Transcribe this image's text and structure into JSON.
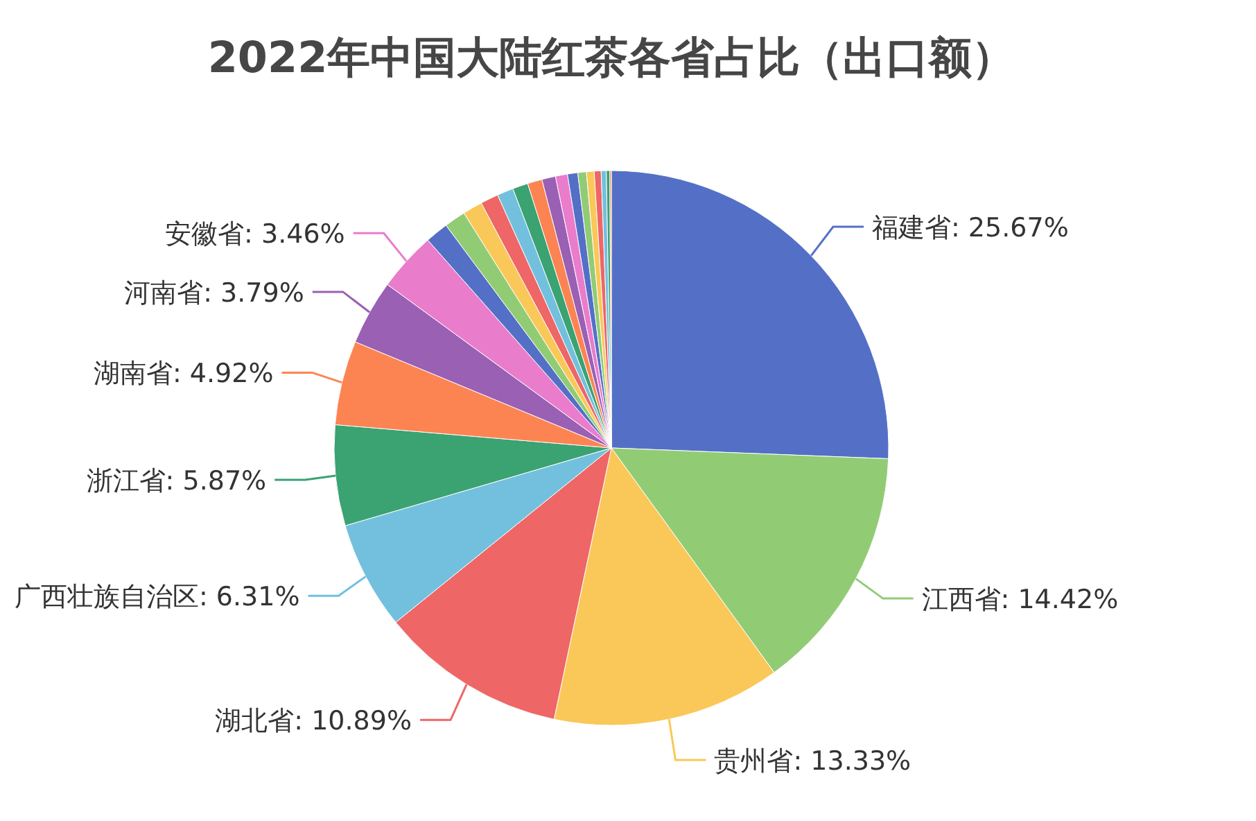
{
  "chart_data": {
    "type": "pie",
    "title": "2022年中国大陆红茶各省占比（出口额）",
    "categories": [
      "福建省",
      "江西省",
      "贵州省",
      "湖北省",
      "广西壮族自治区",
      "浙江省",
      "湖南省",
      "河南省",
      "安徽省",
      null,
      null,
      null,
      null,
      null,
      null,
      null,
      null,
      null,
      null,
      null,
      null,
      null,
      null,
      null,
      null
    ],
    "values": [
      25.67,
      14.42,
      13.33,
      10.89,
      6.31,
      5.87,
      4.92,
      3.79,
      3.46,
      1.35,
      1.25,
      1.15,
      1.05,
      0.95,
      0.9,
      0.85,
      0.8,
      0.7,
      0.6,
      0.5,
      0.45,
      0.4,
      0.3,
      0.2,
      0.09
    ],
    "colors": [
      "#5470c6",
      "#91cc75",
      "#fac858",
      "#ee6666",
      "#73c0de",
      "#3ba272",
      "#fc8452",
      "#9a60b4",
      "#ea7ccc",
      "#5470c6",
      "#91cc75",
      "#fac858",
      "#ee6666",
      "#73c0de",
      "#3ba272",
      "#fc8452",
      "#9a60b4",
      "#ea7ccc",
      "#5470c6",
      "#91cc75",
      "#fac858",
      "#ee6666",
      "#73c0de",
      "#3ba272",
      "#fc8452"
    ],
    "value_labels": [
      "25.67%",
      "14.42%",
      "13.33%",
      "10.89%",
      "6.31%",
      "5.87%",
      "4.92%",
      "3.79%",
      "3.46%",
      null,
      null,
      null,
      null,
      null,
      null,
      null,
      null,
      null,
      null,
      null,
      null,
      null,
      null,
      null,
      null
    ]
  }
}
